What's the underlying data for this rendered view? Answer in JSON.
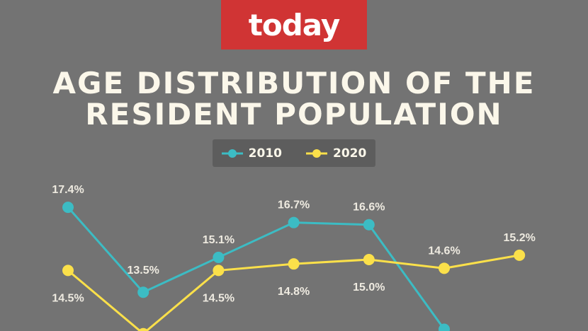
{
  "logo_text": "today",
  "chart_data": {
    "type": "line",
    "title": [
      "AGE DISTRIBUTION OF THE",
      "RESIDENT POPULATION"
    ],
    "legend_placement": "top-center",
    "ylim": [
      11.72,
      18.8
    ],
    "grid": false,
    "series": [
      {
        "name": "2010",
        "color": "#3cbcc4",
        "values": [
          17.4,
          13.5,
          15.1,
          16.7,
          16.6,
          11.8,
          null
        ],
        "labels": [
          "17.4%",
          "13.5%",
          "15.1%",
          "16.7%",
          "16.6%",
          null,
          null
        ]
      },
      {
        "name": "2020",
        "color": "#fbe04a",
        "values": [
          14.5,
          11.6,
          14.5,
          14.8,
          15.0,
          14.6,
          15.2
        ],
        "labels": [
          "14.5%",
          null,
          "14.5%",
          "14.8%",
          "15.0%",
          "14.6%",
          "15.2%"
        ]
      }
    ]
  }
}
